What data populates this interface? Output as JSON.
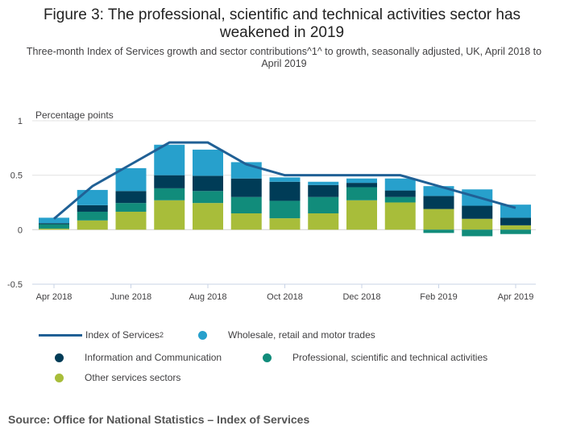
{
  "title": "Figure 3: The professional, scientific and technical activities sector has weakened in 2019",
  "subtitle": "Three-month Index of Services growth and sector contributions^1^ to growth, seasonally adjusted, UK, April 2018 to April 2019",
  "source": "Source: Office for National Statistics – Index of Services",
  "chart_data": {
    "type": "bar",
    "stacked": true,
    "ylabel": "Percentage points",
    "ylim": [
      -0.5,
      1
    ],
    "yticks": [
      "1",
      "0.5",
      "0",
      "-0.5"
    ],
    "ytick_values": [
      1,
      0.5,
      0,
      -0.5
    ],
    "categories": [
      "Apr 2018",
      "May 2018",
      "June 2018",
      "Jul 2018",
      "Aug 2018",
      "Sep 2018",
      "Oct 2018",
      "Nov 2018",
      "Dec 2018",
      "Jan 2019",
      "Feb 2019",
      "Mar 2019",
      "Apr 2019"
    ],
    "xtick_labels": [
      {
        "i": 0,
        "label": "Apr 2018"
      },
      {
        "i": 2,
        "label": "June 2018"
      },
      {
        "i": 4,
        "label": "Aug 2018"
      },
      {
        "i": 6,
        "label": "Oct 2018"
      },
      {
        "i": 8,
        "label": "Dec 2018"
      },
      {
        "i": 10,
        "label": "Feb 2019"
      },
      {
        "i": 12,
        "label": "Apr 2019"
      }
    ],
    "series": [
      {
        "name": "Other services sectors",
        "color": "#a8bd3a",
        "values": [
          0.01,
          0.085,
          0.165,
          0.27,
          0.245,
          0.15,
          0.105,
          0.15,
          0.27,
          0.25,
          0.19,
          0.1,
          0.04
        ]
      },
      {
        "name": "Professional, scientific and technical activities",
        "color": "#118c7b",
        "values": [
          0.04,
          0.08,
          0.08,
          0.11,
          0.11,
          0.15,
          0.16,
          0.15,
          0.12,
          0.05,
          -0.03,
          -0.06,
          -0.04
        ]
      },
      {
        "name": "Information and Communication",
        "color": "#003c57",
        "values": [
          0.01,
          0.06,
          0.11,
          0.12,
          0.14,
          0.17,
          0.175,
          0.11,
          0.04,
          0.06,
          0.12,
          0.12,
          0.07
        ]
      },
      {
        "name": "Wholesale, retail and motor trades",
        "color": "#27a0cc",
        "values": [
          0.05,
          0.14,
          0.21,
          0.28,
          0.24,
          0.15,
          0.04,
          0.03,
          0.04,
          0.11,
          0.09,
          0.15,
          0.12
        ]
      }
    ],
    "line": {
      "name": "Index of Services",
      "superscript": "2",
      "color": "#206095",
      "values": [
        0.1,
        0.4,
        0.6,
        0.8,
        0.8,
        0.6,
        0.5,
        0.5,
        0.5,
        0.5,
        0.4,
        0.3,
        0.2
      ]
    }
  }
}
